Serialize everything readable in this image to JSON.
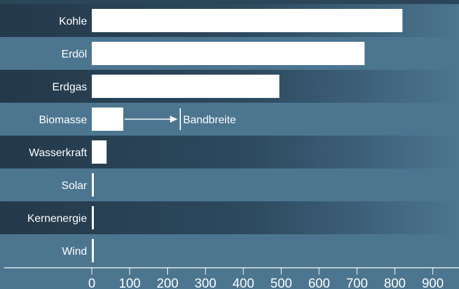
{
  "chart_data": {
    "type": "bar",
    "orientation": "horizontal",
    "title": "",
    "xlabel": "",
    "ylabel": "",
    "categories": [
      "Kohle",
      "Erdöl",
      "Erdgas",
      "Biomasse",
      "Wasserkraft",
      "Solar",
      "Kernenergie",
      "Wind"
    ],
    "values": [
      820,
      720,
      495,
      83,
      39,
      5,
      5,
      5
    ],
    "xlim": [
      0,
      960
    ],
    "xticks": [
      "0",
      "100",
      "200",
      "300",
      "400",
      "500",
      "600",
      "700",
      "800",
      "900"
    ],
    "annotation": {
      "text": "Bandbreite",
      "category": "Biomasse",
      "arrow_from": 83,
      "arrow_to": 230
    },
    "colors": {
      "background": "#4c7590",
      "dark_row": "#2b4659",
      "light_row": "#4c7590",
      "bar": "#ffffff",
      "text": "#ffffff"
    },
    "grid": false,
    "legend": "none"
  }
}
